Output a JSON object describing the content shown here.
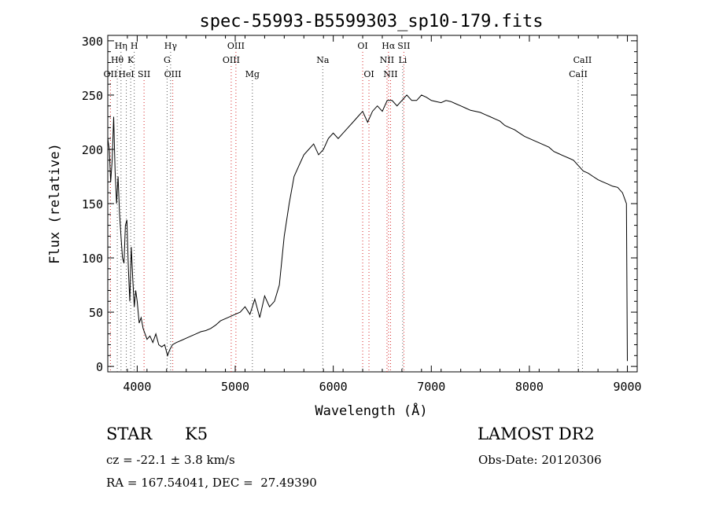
{
  "chart_data": {
    "type": "line",
    "title": "spec-55993-B5599303_sp10-179.fits",
    "xlabel": "Wavelength (Å)",
    "ylabel": "Flux (relative)",
    "xlim": [
      3700,
      9100
    ],
    "ylim": [
      -5,
      305
    ],
    "xticks": [
      {
        "value": 4000,
        "label": "4000"
      },
      {
        "value": 5000,
        "label": "5000"
      },
      {
        "value": 6000,
        "label": "6000"
      },
      {
        "value": 7000,
        "label": "7000"
      },
      {
        "value": 8000,
        "label": "8000"
      },
      {
        "value": 9000,
        "label": "9000"
      }
    ],
    "yticks": [
      {
        "value": 0,
        "label": "0"
      },
      {
        "value": 50,
        "label": "50"
      },
      {
        "value": 100,
        "label": "100"
      },
      {
        "value": 150,
        "label": "150"
      },
      {
        "value": 200,
        "label": "200"
      },
      {
        "value": 250,
        "label": "250"
      },
      {
        "value": 300,
        "label": "300"
      }
    ],
    "grid": false,
    "line_colors": {
      "spectrum": "#000000",
      "emission": "#d62728",
      "absorption": "#555555"
    },
    "spectral_lines": [
      {
        "label": "Hη",
        "wavelength": 3835,
        "row": 1,
        "kind": "absorption"
      },
      {
        "label": "H",
        "wavelength": 3970,
        "row": 1,
        "kind": "absorption"
      },
      {
        "label": "Hθ",
        "wavelength": 3797,
        "row": 2,
        "kind": "absorption"
      },
      {
        "label": "K",
        "wavelength": 3934,
        "row": 2,
        "kind": "absorption"
      },
      {
        "label": "OII",
        "wavelength": 3727,
        "row": 3,
        "kind": "emission"
      },
      {
        "label": "HeI",
        "wavelength": 3889,
        "row": 3,
        "kind": "absorption"
      },
      {
        "label": "SII",
        "wavelength": 4070,
        "row": 3,
        "kind": "emission"
      },
      {
        "label": "Hγ",
        "wavelength": 4341,
        "row": 1,
        "kind": "absorption"
      },
      {
        "label": "G",
        "wavelength": 4305,
        "row": 2,
        "kind": "absorption"
      },
      {
        "label": "OIII",
        "wavelength": 4363,
        "row": 3,
        "kind": "emission"
      },
      {
        "label": "OIII",
        "wavelength": 5007,
        "row": 1,
        "kind": "emission"
      },
      {
        "label": "OIII",
        "wavelength": 4959,
        "row": 2,
        "kind": "emission"
      },
      {
        "label": "Mg",
        "wavelength": 5175,
        "row": 3,
        "kind": "absorption"
      },
      {
        "label": "Na",
        "wavelength": 5893,
        "row": 2,
        "kind": "absorption"
      },
      {
        "label": "OI",
        "wavelength": 6300,
        "row": 1,
        "kind": "emission"
      },
      {
        "label": "OI",
        "wavelength": 6364,
        "row": 3,
        "kind": "emission"
      },
      {
        "label": "Hα",
        "wavelength": 6563,
        "row": 1,
        "kind": "emission"
      },
      {
        "label": "SII",
        "wavelength": 6720,
        "row": 1,
        "kind": "emission"
      },
      {
        "label": "NII",
        "wavelength": 6548,
        "row": 2,
        "kind": "emission"
      },
      {
        "label": "Li",
        "wavelength": 6708,
        "row": 2,
        "kind": "absorption"
      },
      {
        "label": "NII",
        "wavelength": 6584,
        "row": 3,
        "kind": "emission"
      },
      {
        "label": "CaII",
        "wavelength": 8542,
        "row": 2,
        "kind": "absorption"
      },
      {
        "label": "CaII",
        "wavelength": 8498,
        "row": 3,
        "kind": "absorption"
      }
    ],
    "series": [
      {
        "x": [
          3700,
          3715,
          3730,
          3745,
          3760,
          3775,
          3790,
          3805,
          3820,
          3835,
          3850,
          3865,
          3880,
          3895,
          3910,
          3925,
          3940,
          3955,
          3970,
          3985,
          4000,
          4020,
          4040,
          4060,
          4080,
          4100,
          4130,
          4160,
          4190,
          4220,
          4250,
          4280,
          4310,
          4330,
          4360,
          4400,
          4450,
          4500,
          4550,
          4600,
          4650,
          4700,
          4750,
          4800,
          4850,
          4900,
          4950,
          5000,
          5050,
          5100,
          5150,
          5200,
          5250,
          5300,
          5350,
          5400,
          5450,
          5500,
          5550,
          5600,
          5650,
          5700,
          5750,
          5800,
          5850,
          5900,
          5950,
          6000,
          6050,
          6100,
          6150,
          6200,
          6250,
          6300,
          6350,
          6400,
          6450,
          6500,
          6550,
          6600,
          6650,
          6700,
          6750,
          6800,
          6850,
          6900,
          6950,
          7000,
          7050,
          7100,
          7150,
          7200,
          7250,
          7300,
          7350,
          7400,
          7450,
          7500,
          7550,
          7600,
          7650,
          7700,
          7750,
          7800,
          7850,
          7900,
          7950,
          8000,
          8050,
          8100,
          8150,
          8200,
          8250,
          8300,
          8350,
          8400,
          8450,
          8500,
          8550,
          8600,
          8650,
          8700,
          8750,
          8800,
          8850,
          8900,
          8950,
          8990,
          9000
        ],
        "y": [
          210,
          200,
          170,
          190,
          230,
          180,
          150,
          175,
          140,
          120,
          100,
          95,
          130,
          135,
          90,
          60,
          110,
          80,
          55,
          70,
          60,
          40,
          45,
          35,
          30,
          25,
          28,
          22,
          30,
          20,
          18,
          20,
          10,
          15,
          20,
          22,
          24,
          26,
          28,
          30,
          32,
          33,
          35,
          38,
          42,
          44,
          46,
          48,
          50,
          55,
          48,
          62,
          45,
          65,
          55,
          60,
          75,
          120,
          150,
          175,
          185,
          195,
          200,
          205,
          195,
          200,
          210,
          215,
          210,
          215,
          220,
          225,
          230,
          235,
          225,
          235,
          240,
          235,
          245,
          245,
          240,
          245,
          250,
          245,
          245,
          250,
          248,
          245,
          244,
          243,
          245,
          244,
          242,
          240,
          238,
          236,
          235,
          234,
          232,
          230,
          228,
          226,
          222,
          220,
          218,
          215,
          212,
          210,
          208,
          206,
          204,
          202,
          198,
          196,
          194,
          192,
          190,
          185,
          180,
          178,
          175,
          172,
          170,
          168,
          166,
          165,
          160,
          150,
          5
        ]
      }
    ]
  },
  "info": {
    "object_class": "STAR",
    "subclass": "K5",
    "survey": "LAMOST DR2",
    "redshift": "cz = -22.1 ± 3.8 km/s",
    "obs_date": "Obs-Date: 20120306",
    "coords": "RA = 167.54041, DEC =  27.49390"
  }
}
